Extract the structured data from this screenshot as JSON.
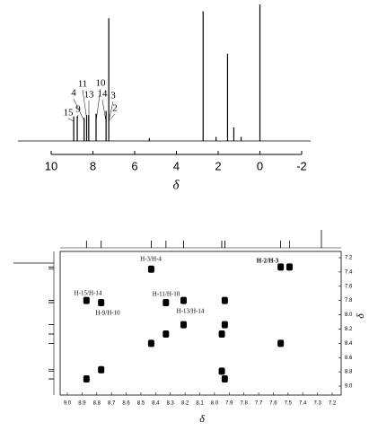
{
  "chart_data": [
    {
      "type": "spectrum",
      "x": [
        8.92,
        8.75,
        8.42,
        8.3,
        8.2,
        7.85,
        7.37,
        7.24,
        5.3,
        2.72,
        2.1,
        1.55,
        1.25,
        0.9,
        0.0
      ],
      "values": [
        18,
        18,
        17,
        19,
        19,
        20,
        22,
        90,
        2,
        95,
        3,
        64,
        10,
        3,
        100
      ],
      "xlim": [
        10,
        -2
      ],
      "xticks": [
        10,
        8,
        6,
        4,
        2,
        0,
        -2
      ],
      "ylim": [
        0,
        100
      ],
      "x_label": "δ",
      "color": "#000000",
      "peak_labels": [
        "15",
        "9",
        "4",
        "11",
        "13",
        "10",
        "14",
        "3",
        "2"
      ]
    },
    {
      "type": "scatter",
      "x": [
        7.55,
        7.49,
        8.43,
        8.87,
        8.77,
        8.33,
        8.21,
        7.93,
        8.21,
        8.33,
        8.43,
        7.93,
        7.95,
        7.55,
        8.77,
        8.87,
        7.95,
        7.93
      ],
      "y": [
        7.33,
        7.33,
        7.36,
        7.8,
        7.83,
        7.83,
        7.8,
        7.8,
        8.14,
        8.27,
        8.4,
        8.14,
        8.27,
        8.4,
        8.77,
        8.9,
        8.79,
        8.9
      ],
      "xlim": [
        9.0,
        7.2
      ],
      "ylim": [
        7.2,
        9.0
      ],
      "xticks": [
        {
          "value": 9.0,
          "label": "9.0"
        },
        8.9,
        8.8,
        8.7,
        8.6,
        8.5,
        8.4,
        8.3,
        8.2,
        8.1,
        {
          "value": 8.0,
          "label": "8.0"
        },
        7.9,
        7.8,
        7.7,
        7.6,
        7.5,
        7.4,
        7.3,
        7.2
      ],
      "yticks": [
        7.2,
        7.4,
        7.6,
        7.8,
        {
          "value": 8.0,
          "label": "8.0"
        },
        8.2,
        8.4,
        8.6,
        8.8,
        {
          "value": 9.0,
          "label": "9.0"
        }
      ],
      "x_label": "δ",
      "y_label": "δ",
      "color": "#000000",
      "annotations": [
        "H-3/H-4",
        "H-15/H-14",
        "H-9/H-10",
        "H-11/H-10",
        "H-13/H-14",
        "H-2/H-3"
      ]
    }
  ]
}
